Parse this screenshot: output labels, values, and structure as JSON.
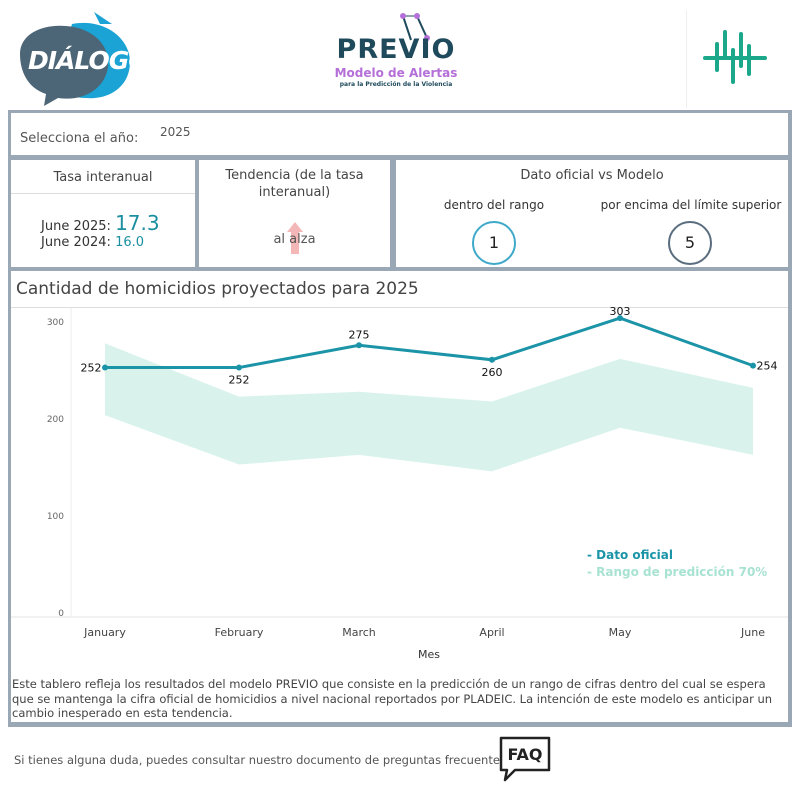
{
  "header": {
    "logo_left_text": "DIÁLOGOS",
    "logo_center_title": "PREVIO",
    "logo_center_sub1": "Modelo de Alertas",
    "logo_center_sub2": "para la Predicción de la Violencia"
  },
  "year_selector": {
    "label": "Selecciona el año:",
    "value": "2025"
  },
  "tasa": {
    "title": "Tasa interanual",
    "current_label": "June 2025:",
    "current_value": "17.3",
    "previous_label": "June 2024:",
    "previous_value": "16.0"
  },
  "tendencia": {
    "title": "Tendencia (de la tasa interanual)",
    "value": "al alza"
  },
  "dato_vs_modelo": {
    "title": "Dato oficial vs Modelo",
    "within_label": "dentro del rango",
    "within_count": "1",
    "above_label": "por encima del límite superior",
    "above_count": "5"
  },
  "chart_title": "Cantidad de homicidios proyectados para 2025",
  "chart_data": {
    "type": "line",
    "categories": [
      "January",
      "February",
      "March",
      "April",
      "May",
      "June"
    ],
    "series": [
      {
        "name": "Dato oficial",
        "values": [
          252,
          252,
          275,
          260,
          303,
          254
        ]
      }
    ],
    "range_lower": [
      203,
      152,
      162,
      145,
      190,
      162
    ],
    "range_upper": [
      277,
      222,
      227,
      217,
      261,
      231
    ],
    "xlabel": "Mes",
    "ylabel": "",
    "ylim": [
      0,
      310
    ],
    "yticks": [
      0,
      100,
      200,
      300
    ],
    "legend": [
      "- Dato oficial",
      "- Rango de predicción 70%"
    ],
    "legend_position": "bottom-right",
    "line_color": "#1b94a8",
    "band_color": "#d9f3ec",
    "legend_band_color": "#a8e3d2"
  },
  "description": "Este tablero refleja los resultados del modelo PREVIO que consiste en la predicción de un rango de cifras dentro del cual se espera que se mantenga la cifra oficial de homicidios a nivel nacional reportados por PLADEIC. La intención de este modelo es anticipar un cambio inesperado en esta tendencia.",
  "footer": {
    "text": "Si tienes alguna duda, puedes consultar nuestro documento de preguntas frecuentes",
    "faq_label": "FAQ"
  }
}
